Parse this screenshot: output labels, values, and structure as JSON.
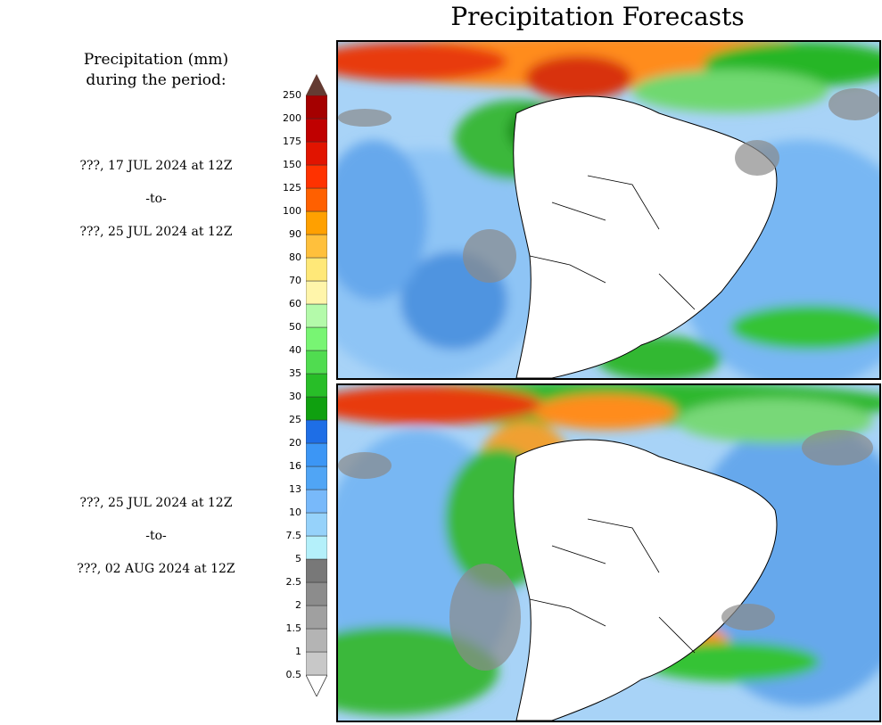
{
  "title": "Precipitation Forecasts",
  "legend_title_line1": "Precipitation (mm)",
  "legend_title_line2": "during the period:",
  "periods": [
    {
      "start": "???, 17 JUL 2024 at 12Z",
      "to": "-to-",
      "end": "???, 25 JUL 2024 at 12Z"
    },
    {
      "start": "???, 25 JUL 2024 at 12Z",
      "to": "-to-",
      "end": "???, 02 AUG 2024 at 12Z"
    }
  ],
  "colorbar": {
    "levels": [
      "0.5",
      "1",
      "1.5",
      "2",
      "2.5",
      "5",
      "7.5",
      "10",
      "13",
      "16",
      "20",
      "25",
      "30",
      "35",
      "40",
      "50",
      "60",
      "70",
      "80",
      "90",
      "100",
      "125",
      "150",
      "175",
      "200",
      "250"
    ],
    "colors": [
      "#c8c8c8",
      "#b4b4b4",
      "#a0a0a0",
      "#8c8c8c",
      "#787878",
      "#b4f0fa",
      "#96d2fa",
      "#78b9fa",
      "#50a5f5",
      "#3c96f5",
      "#1e6ee6",
      "#0fa00f",
      "#28be28",
      "#50dc50",
      "#78f573",
      "#b4faaa",
      "#fff5aa",
      "#ffe878",
      "#ffc03c",
      "#ffa000",
      "#ff6000",
      "#ff3200",
      "#e11400",
      "#c00000",
      "#a50000",
      "#870000",
      "#643b32"
    ]
  },
  "map": {
    "region": "South America",
    "ocean_color": "#e9f3fb",
    "land_dry_color": "#ffffff"
  }
}
